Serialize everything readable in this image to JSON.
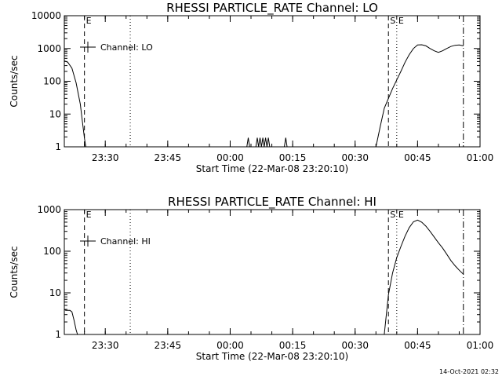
{
  "chart_data": [
    {
      "type": "line",
      "title": "RHESSI PARTICLE_RATE Channel: LO",
      "xlabel": "Start Time (22-Mar-08 23:20:10)",
      "ylabel": "Counts/sec",
      "yscale": "log",
      "xlim": [
        "23:20:10",
        "01:00:00"
      ],
      "ylim": [
        1,
        10000
      ],
      "x_ticks": [
        "23:30",
        "23:45",
        "00:00",
        "00:15",
        "00:30",
        "00:45",
        "01:00"
      ],
      "y_ticks": [
        "1",
        "10",
        "100",
        "1000",
        "10000"
      ],
      "legend": "Channel: LO",
      "legend_position": "top-left",
      "markers": [
        {
          "label": "E",
          "style": "dashed",
          "x": "23:25"
        },
        {
          "label": "",
          "style": "dotted",
          "x": "23:36"
        },
        {
          "label": "S",
          "style": "dashed",
          "x": "00:38"
        },
        {
          "label": "E",
          "style": "dotted",
          "x": "00:40"
        },
        {
          "label": "",
          "style": "dashdot",
          "x": "00:56"
        }
      ],
      "series": [
        {
          "name": "Channel: LO",
          "segments": [
            {
              "x": [
                "23:20:10",
                "23:21",
                "23:22",
                "23:23",
                "23:24",
                "23:24:30",
                "23:25",
                "23:25:20"
              ],
              "y": [
                420,
                380,
                250,
                90,
                20,
                6,
                1.8,
                1
              ]
            },
            {
              "x": [
                "00:04:00",
                "00:04:20",
                "00:04:40"
              ],
              "y": [
                1,
                1.9,
                1
              ]
            },
            {
              "x": [
                "00:06:10",
                "00:06:30",
                "00:06:50",
                "00:07:10",
                "00:07:30",
                "00:07:50",
                "00:08:10",
                "00:08:30",
                "00:08:50",
                "00:09:10"
              ],
              "y": [
                1,
                1.9,
                1,
                1.9,
                1,
                1.9,
                1,
                1.9,
                1,
                1.9
              ]
            },
            {
              "x": [
                "00:09:10",
                "00:09:30"
              ],
              "y": [
                1.9,
                1
              ]
            },
            {
              "x": [
                "00:13:00",
                "00:13:20",
                "00:13:40"
              ],
              "y": [
                1,
                1.9,
                1
              ]
            },
            {
              "x": [
                "00:35:00",
                "00:36:00",
                "00:37:00",
                "00:38:00",
                "00:39:00",
                "00:40:00",
                "00:41:00",
                "00:42:00",
                "00:43:00",
                "00:44:00",
                "00:45:00",
                "00:46:00",
                "00:47:00",
                "00:48:00",
                "00:49:00",
                "00:50:00",
                "00:51:00",
                "00:52:00",
                "00:53:00",
                "00:54:00",
                "00:55:00",
                "00:56:00"
              ],
              "y": [
                1,
                4,
                15,
                30,
                60,
                110,
                200,
                380,
                650,
                1000,
                1280,
                1300,
                1200,
                1000,
                850,
                760,
                850,
                1000,
                1150,
                1250,
                1280,
                1200
              ]
            }
          ]
        }
      ]
    },
    {
      "type": "line",
      "title": "RHESSI PARTICLE_RATE Channel: HI",
      "xlabel": "Start Time (22-Mar-08 23:20:10)",
      "ylabel": "Counts/sec",
      "yscale": "log",
      "xlim": [
        "23:20:10",
        "01:00:00"
      ],
      "ylim": [
        1,
        1000
      ],
      "x_ticks": [
        "23:30",
        "23:45",
        "00:00",
        "00:15",
        "00:30",
        "00:45",
        "01:00"
      ],
      "y_ticks": [
        "1",
        "10",
        "100",
        "1000"
      ],
      "legend": "Channel: HI",
      "legend_position": "top-left",
      "markers": [
        {
          "label": "E",
          "style": "dashed",
          "x": "23:25"
        },
        {
          "label": "",
          "style": "dotted",
          "x": "23:36"
        },
        {
          "label": "S",
          "style": "dashed",
          "x": "00:38"
        },
        {
          "label": "E",
          "style": "dotted",
          "x": "00:40"
        },
        {
          "label": "",
          "style": "dashdot",
          "x": "00:56"
        }
      ],
      "series": [
        {
          "name": "Channel: HI",
          "segments": [
            {
              "x": [
                "23:20:10",
                "23:20:30",
                "23:21:30",
                "23:22",
                "23:22:30",
                "23:23",
                "23:23:20"
              ],
              "y": [
                4,
                3.8,
                3.8,
                3.5,
                2.2,
                1.3,
                1
              ]
            },
            {
              "x": [
                "00:37:00",
                "00:38:00",
                "00:39:00",
                "00:40:00",
                "00:41:00",
                "00:42:00",
                "00:43:00",
                "00:44:00",
                "00:45:00",
                "00:46:00",
                "00:47:00",
                "00:48:00",
                "00:49:00",
                "00:50:00",
                "00:51:00",
                "00:52:00",
                "00:53:00",
                "00:54:00",
                "00:55:00",
                "00:56:00"
              ],
              "y": [
                1,
                9,
                30,
                70,
                130,
                230,
                370,
                510,
                560,
                500,
                400,
                300,
                220,
                160,
                120,
                85,
                60,
                45,
                35,
                28
              ]
            }
          ]
        }
      ]
    }
  ],
  "footer": {
    "timestamp": "14-Oct-2021 02:32"
  }
}
